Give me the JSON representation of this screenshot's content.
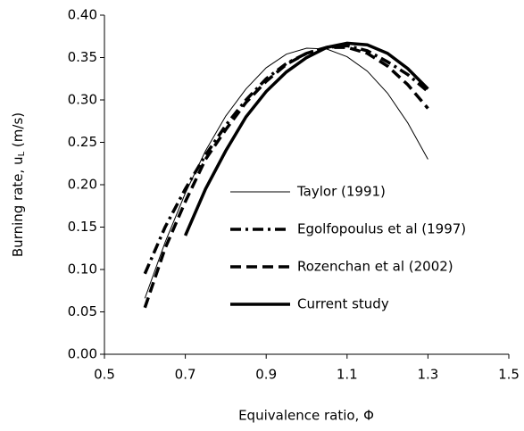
{
  "chart_data": {
    "type": "line",
    "xlabel": "Equivalence ratio, Φ",
    "ylabel_parts": [
      "Burning rate, u",
      "L",
      " (m/s)"
    ],
    "xlim": [
      0.5,
      1.5
    ],
    "xticks": [
      0.5,
      0.7,
      0.9,
      1.1,
      1.3,
      1.5
    ],
    "ylim": [
      0,
      0.4
    ],
    "yticks": [
      {
        "value": 0,
        "label": "0.00"
      },
      {
        "value": 0.05,
        "label": "0.05"
      },
      {
        "value": 0.1,
        "label": "0.10"
      },
      {
        "value": 0.15,
        "label": "0.15"
      },
      {
        "value": 0.2,
        "label": "0.20"
      },
      {
        "value": 0.25,
        "label": "0.25"
      },
      {
        "value": 0.3,
        "label": "0.30"
      },
      {
        "value": 0.35,
        "label": "0.35"
      },
      {
        "value": 0.4,
        "label": "0.40"
      }
    ],
    "series": [
      {
        "name": "Taylor (1991)",
        "color": "#000000",
        "width": 1,
        "dash": "none",
        "x": [
          0.6,
          0.65,
          0.7,
          0.75,
          0.8,
          0.85,
          0.9,
          0.95,
          1.0,
          1.05,
          1.1,
          1.15,
          1.2,
          1.25,
          1.3
        ],
        "values": [
          0.066,
          0.132,
          0.19,
          0.24,
          0.281,
          0.313,
          0.338,
          0.354,
          0.361,
          0.36,
          0.351,
          0.334,
          0.308,
          0.273,
          0.23
        ]
      },
      {
        "name": "Egolfopoulus et al (1997)",
        "color": "#000000",
        "width": 3.5,
        "dash": "12 5 3 5",
        "x": [
          0.6,
          0.65,
          0.7,
          0.75,
          0.8,
          0.85,
          0.9,
          0.95,
          1.0,
          1.05,
          1.1,
          1.15,
          1.2,
          1.25,
          1.3
        ],
        "values": [
          0.095,
          0.15,
          0.195,
          0.235,
          0.27,
          0.3,
          0.325,
          0.343,
          0.355,
          0.362,
          0.364,
          0.358,
          0.345,
          0.33,
          0.31
        ]
      },
      {
        "name": "Rozenchan et al (2002)",
        "color": "#000000",
        "width": 3.5,
        "dash": "12 6",
        "x": [
          0.6,
          0.65,
          0.7,
          0.75,
          0.8,
          0.85,
          0.9,
          0.95,
          1.0,
          1.05,
          1.1,
          1.15,
          1.2,
          1.25,
          1.3
        ],
        "values": [
          0.055,
          0.125,
          0.18,
          0.23,
          0.265,
          0.297,
          0.322,
          0.342,
          0.355,
          0.362,
          0.362,
          0.355,
          0.34,
          0.318,
          0.29
        ]
      },
      {
        "name": "Current study",
        "color": "#000000",
        "width": 3.5,
        "dash": "none",
        "x": [
          0.7,
          0.75,
          0.8,
          0.85,
          0.9,
          0.95,
          1.0,
          1.05,
          1.1,
          1.15,
          1.2,
          1.25,
          1.3
        ],
        "values": [
          0.14,
          0.195,
          0.24,
          0.28,
          0.31,
          0.333,
          0.35,
          0.362,
          0.367,
          0.365,
          0.355,
          0.337,
          0.313
        ]
      }
    ]
  }
}
